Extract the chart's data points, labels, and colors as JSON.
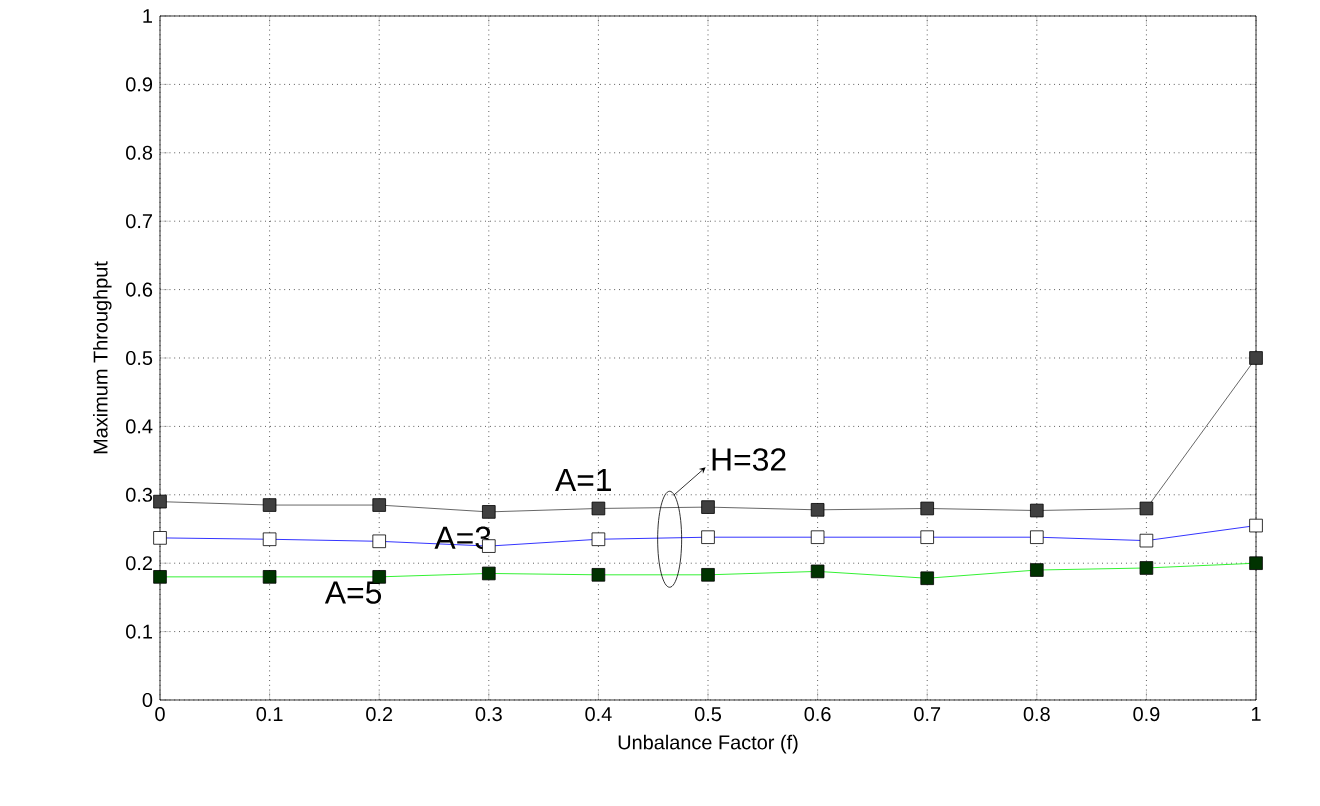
{
  "chart_data": {
    "type": "line",
    "xlabel": "Unbalance Factor (f)",
    "ylabel": "Maximum Throughput",
    "x": [
      0,
      0.1,
      0.2,
      0.3,
      0.4,
      0.5,
      0.6,
      0.7,
      0.8,
      0.9,
      1
    ],
    "series": [
      {
        "name": "A=1",
        "color": "#404040",
        "values": [
          0.29,
          0.285,
          0.285,
          0.275,
          0.28,
          0.282,
          0.278,
          0.28,
          0.277,
          0.28,
          0.5
        ]
      },
      {
        "name": "A=3",
        "color": "#0000ff",
        "values": [
          0.237,
          0.235,
          0.232,
          0.225,
          0.235,
          0.238,
          0.238,
          0.238,
          0.238,
          0.233,
          0.255
        ]
      },
      {
        "name": "A=5",
        "color": "#00ee00",
        "values": [
          0.18,
          0.18,
          0.18,
          0.185,
          0.183,
          0.183,
          0.188,
          0.178,
          0.19,
          0.193,
          0.2
        ]
      }
    ],
    "annotations": [
      {
        "text": "H=32",
        "x": 0.465,
        "y": 0.235
      }
    ],
    "xlim": [
      0,
      1
    ],
    "ylim": [
      0,
      1
    ],
    "xticks": [
      0,
      0.1,
      0.2,
      0.3,
      0.4,
      0.5,
      0.6,
      0.7,
      0.8,
      0.9,
      1
    ],
    "yticks": [
      0,
      0.1,
      0.2,
      0.3,
      0.4,
      0.5,
      0.6,
      0.7,
      0.8,
      0.9,
      1
    ],
    "grid": true,
    "marker": "square",
    "line_style": "solid"
  }
}
